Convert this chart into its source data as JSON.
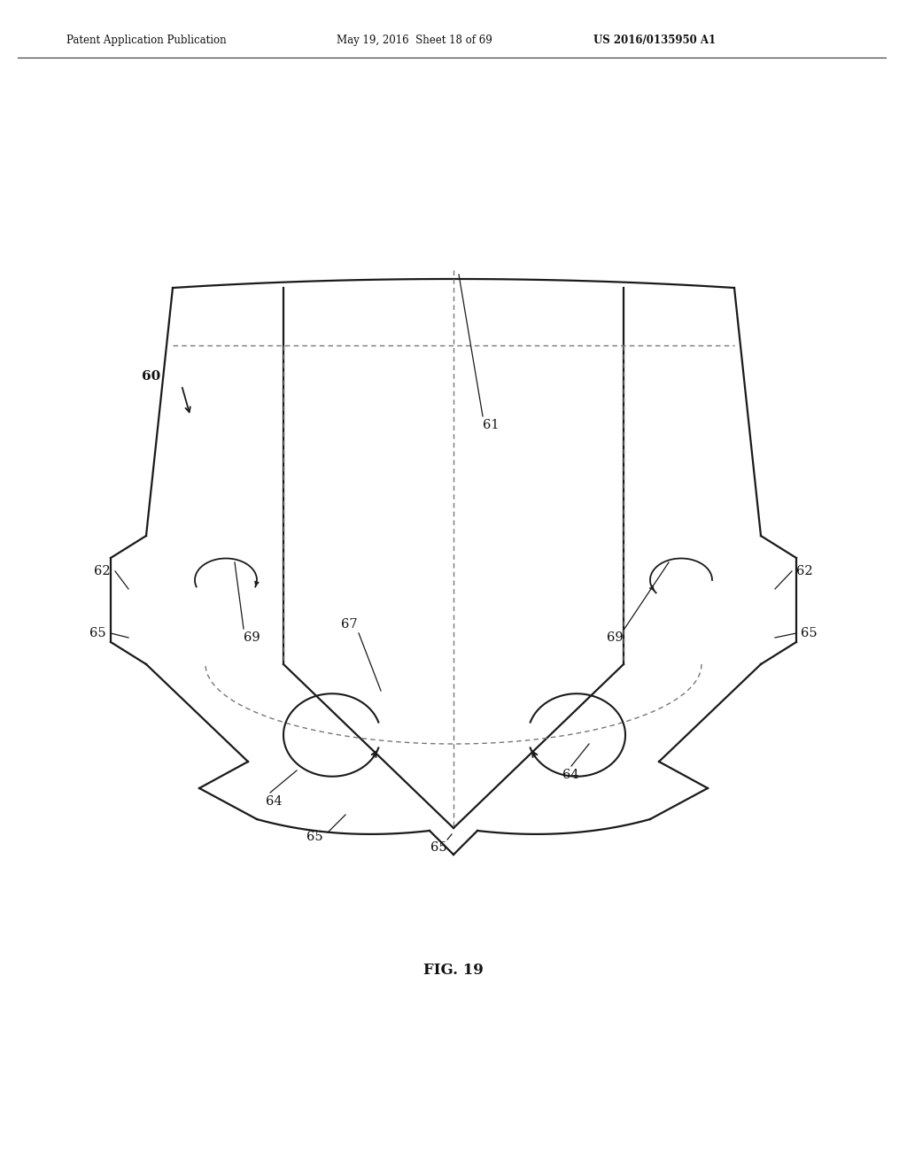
{
  "bg_color": "#ffffff",
  "line_color": "#1a1a1a",
  "dashed_color": "#777777",
  "header_text": "Patent Application Publication",
  "header_date": "May 19, 2016  Sheet 18 of 69",
  "header_patent": "US 2016/0135950 A1",
  "fig_label": "FIG. 19"
}
